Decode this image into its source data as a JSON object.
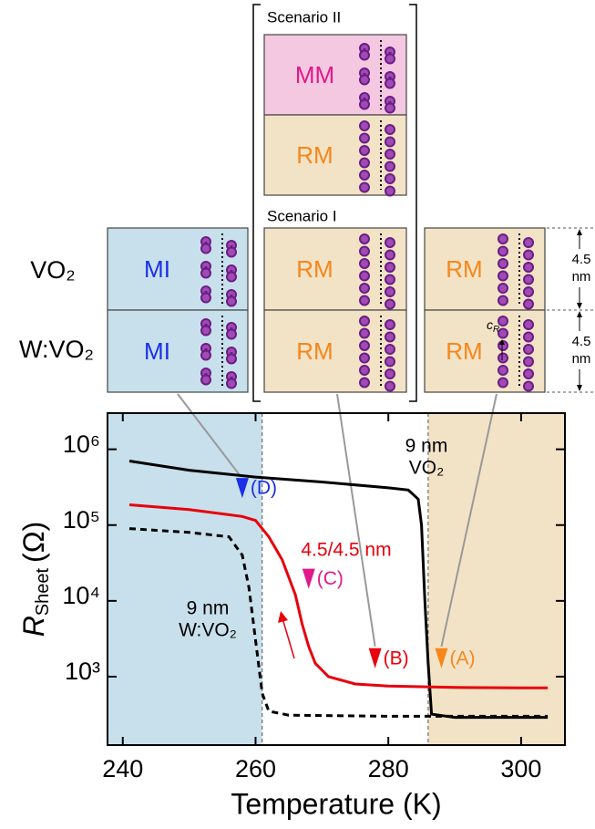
{
  "diagram": {
    "row_labels": [
      "VO₂",
      "W:VO₂"
    ],
    "scenarios": [
      {
        "title": "Scenario II",
        "panels": [
          "MM",
          "RM"
        ]
      },
      {
        "title": "Scenario I",
        "panels": [
          "RM",
          "RM"
        ]
      }
    ],
    "left_panels": [
      "MI",
      "MI"
    ],
    "right_panels": [
      "RM",
      "RM"
    ],
    "thickness": [
      {
        "value": "4.5",
        "unit": "nm"
      },
      {
        "value": "4.5",
        "unit": "nm"
      }
    ],
    "axis_label": {
      "symbol": "c",
      "subscript": "R"
    }
  },
  "chart_data": {
    "type": "line",
    "x_label": "Temperature (K)",
    "y_label": {
      "symbol": "R",
      "subscript": "Sheet",
      "unit": "(Ω)"
    },
    "xlim": [
      237.7,
      306.6
    ],
    "xticks": [
      240,
      260,
      280,
      300
    ],
    "ylim": [
      125,
      3000000
    ],
    "yscale": "log",
    "yticks": [
      {
        "value": 1000,
        "label": "10³"
      },
      {
        "value": 10000,
        "label": "10⁴"
      },
      {
        "value": 100000,
        "label": "10⁵"
      },
      {
        "value": 1000000,
        "label": "10⁶"
      }
    ],
    "regions": [
      {
        "x": [
          237.7,
          261
        ],
        "color": "#c8e0ec"
      },
      {
        "x": [
          286,
          306.6
        ],
        "color": "#f3e3c6"
      }
    ],
    "series": [
      {
        "color": "#000000",
        "dashed": false,
        "x": [
          241,
          250,
          260,
          270,
          280,
          283,
          284.5,
          285,
          285.5,
          286,
          286.5,
          290,
          300,
          304
        ],
        "values": [
          700000,
          530000,
          430000,
          370000,
          310000,
          290000,
          220000,
          100000,
          10000,
          1500,
          320,
          290,
          290,
          290
        ]
      },
      {
        "color": "#e8000b",
        "dashed": false,
        "x": [
          241,
          250,
          258,
          260,
          262,
          264,
          266,
          267,
          268,
          269,
          271,
          275,
          280,
          290,
          300,
          304
        ],
        "values": [
          185000,
          160000,
          130000,
          115000,
          70000,
          35000,
          12000,
          5000,
          2500,
          1500,
          1000,
          800,
          750,
          720,
          710,
          710
        ]
      },
      {
        "color": "#000000",
        "dashed": true,
        "x": [
          241,
          250,
          256,
          258,
          259,
          260,
          261,
          262,
          265,
          280,
          304
        ],
        "values": [
          90000,
          80000,
          70000,
          40000,
          15000,
          3000,
          600,
          350,
          310,
          300,
          300
        ]
      }
    ],
    "annotations": [
      {
        "text": [
          "9 nm",
          "VO₂"
        ],
        "color": "#000000"
      },
      {
        "text": [
          "4.5/4.5 nm"
        ],
        "color": "#e8000b"
      },
      {
        "text": [
          "9 nm",
          "W:VO₂"
        ],
        "color": "#000000"
      }
    ],
    "markers": [
      {
        "label": "(D)",
        "x": 258,
        "y": 300000,
        "color": "#1a2fe6"
      },
      {
        "label": "(C)",
        "x": 268,
        "y": 19000,
        "color": "#e0198a"
      },
      {
        "label": "(B)",
        "x": 278,
        "y": 1700,
        "color": "#e8000b"
      },
      {
        "label": "(A)",
        "x": 288,
        "y": 1700,
        "color": "#f7861b"
      }
    ]
  }
}
